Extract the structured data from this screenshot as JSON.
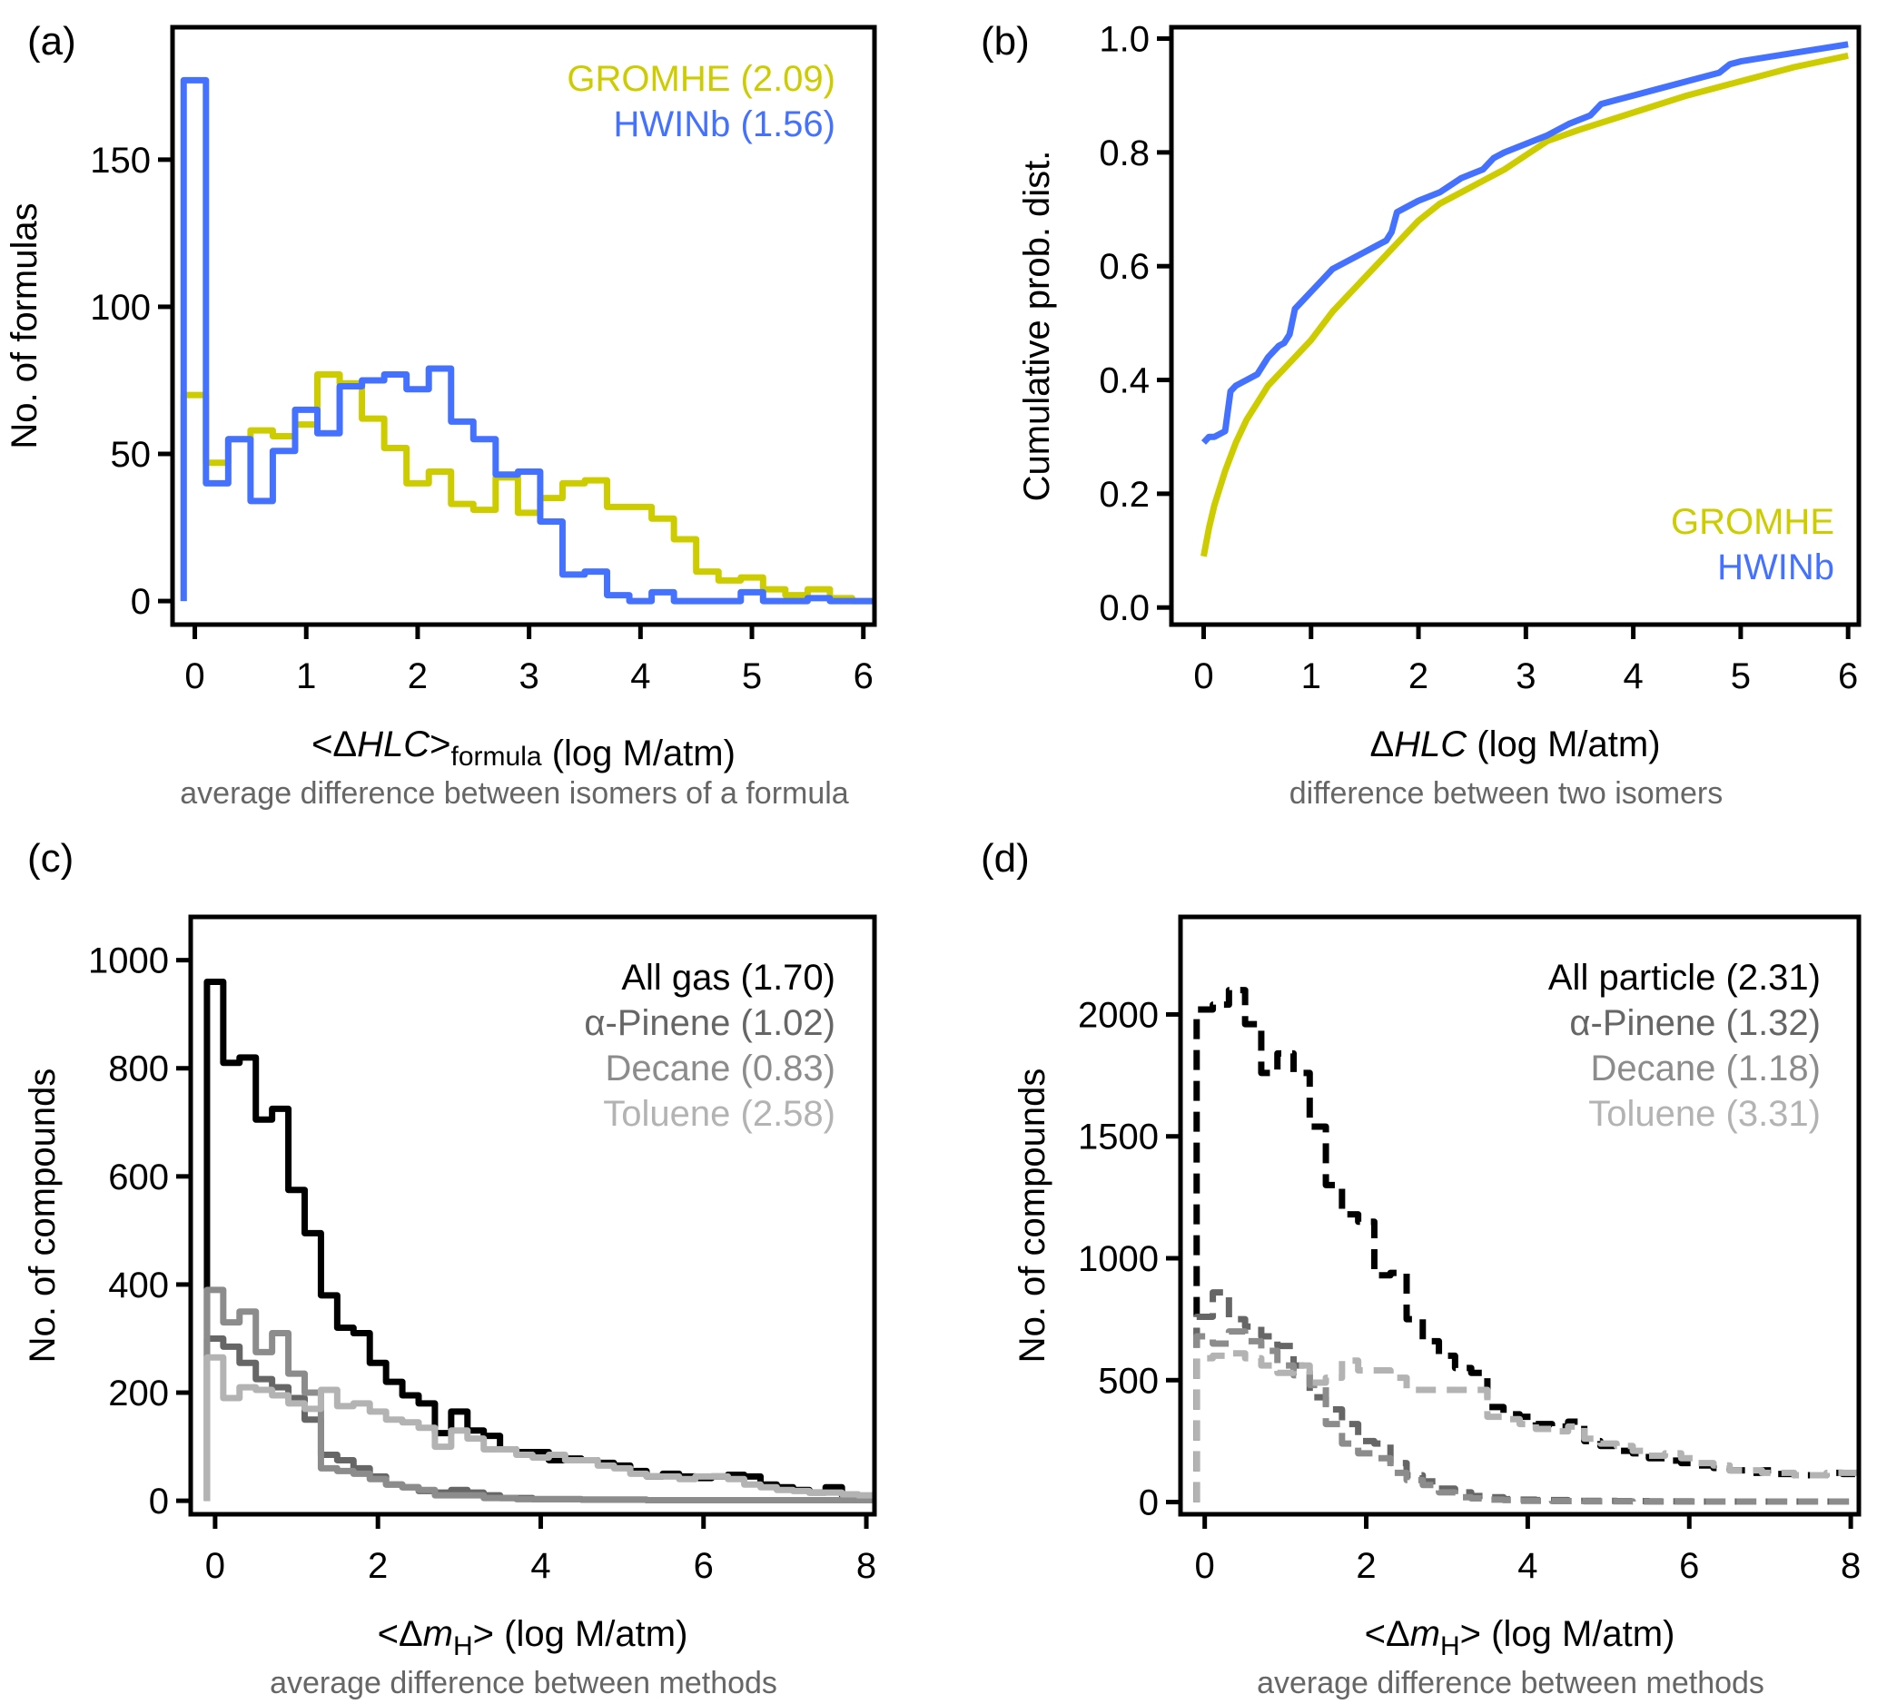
{
  "figure": {
    "panels": [
      "(a)",
      "(b)",
      "(c)",
      "(d)"
    ]
  },
  "chart_data": [
    {
      "id": "a",
      "type": "line",
      "style": "step-histogram",
      "panel_label": "(a)",
      "xlabel_prefix": "<Δ",
      "xlabel_italic": "HLC",
      "xlabel_mid": ">",
      "xlabel_sub": "formula",
      "xlabel_suffix": " (log M/atm)",
      "sublabel": "average difference between isomers of a formula",
      "ylabel": "No. of formulas",
      "xlim": [
        -0.2,
        6.1
      ],
      "ylim": [
        -8,
        195
      ],
      "xticks": [
        0,
        1,
        2,
        3,
        4,
        5,
        6
      ],
      "yticks": [
        0,
        50,
        100,
        150
      ],
      "bin_width": 0.2,
      "bin_start": -0.1,
      "series": [
        {
          "name": "GROMHE",
          "legend": "GROMHE (2.09)",
          "color": "#cccc00",
          "values": [
            70,
            47,
            55,
            58,
            56,
            60,
            77,
            74,
            62,
            52,
            40,
            44,
            33,
            31,
            42,
            30,
            35,
            40,
            41,
            32,
            32,
            28,
            21,
            10,
            7,
            8,
            4,
            2,
            4,
            1,
            0
          ]
        },
        {
          "name": "HWINb",
          "legend": "HWINb (1.56)",
          "color": "#4472ff",
          "values": [
            177,
            40,
            55,
            34,
            51,
            65,
            57,
            73,
            75,
            77,
            72,
            79,
            61,
            55,
            43,
            44,
            27,
            9,
            10,
            2,
            0,
            3,
            0,
            0,
            0,
            3,
            0,
            0,
            1,
            0,
            0
          ]
        }
      ]
    },
    {
      "id": "b",
      "type": "line",
      "panel_label": "(b)",
      "xlabel_prefix": "Δ",
      "xlabel_italic": "HLC",
      "xlabel_suffix": " (log M/atm)",
      "sublabel": "difference between two isomers",
      "ylabel": "Cumulative prob. dist.",
      "xlim": [
        -0.3,
        6.1
      ],
      "ylim": [
        -0.03,
        1.02
      ],
      "xticks": [
        0,
        1,
        2,
        3,
        4,
        5,
        6
      ],
      "yticks": [
        0.0,
        0.2,
        0.4,
        0.6,
        0.8,
        1.0
      ],
      "ytick_labels": [
        "0.0",
        "0.2",
        "0.4",
        "0.6",
        "0.8",
        "1.0"
      ],
      "series": [
        {
          "name": "GROMHE",
          "legend": "GROMHE",
          "color": "#cccc00",
          "x": [
            0,
            0.05,
            0.1,
            0.2,
            0.3,
            0.4,
            0.5,
            0.6,
            0.7,
            0.8,
            0.9,
            1.0,
            1.2,
            1.4,
            1.6,
            1.8,
            2.0,
            2.2,
            2.4,
            2.6,
            2.8,
            3.0,
            3.2,
            3.5,
            4.0,
            4.5,
            5.0,
            5.5,
            6.0
          ],
          "y": [
            0.09,
            0.14,
            0.18,
            0.24,
            0.29,
            0.33,
            0.36,
            0.39,
            0.41,
            0.43,
            0.45,
            0.47,
            0.52,
            0.56,
            0.6,
            0.64,
            0.68,
            0.71,
            0.73,
            0.75,
            0.77,
            0.795,
            0.82,
            0.84,
            0.87,
            0.9,
            0.925,
            0.95,
            0.97
          ]
        },
        {
          "name": "HWINb",
          "legend": "HWINb",
          "color": "#4472ff",
          "x": [
            0,
            0.05,
            0.1,
            0.2,
            0.25,
            0.3,
            0.4,
            0.5,
            0.55,
            0.6,
            0.7,
            0.75,
            0.8,
            0.85,
            0.9,
            1.0,
            1.1,
            1.2,
            1.3,
            1.4,
            1.5,
            1.6,
            1.7,
            1.75,
            1.8,
            1.9,
            2.0,
            2.2,
            2.4,
            2.6,
            2.7,
            2.8,
            3.0,
            3.2,
            3.4,
            3.6,
            3.65,
            3.7,
            4.0,
            4.2,
            4.5,
            4.8,
            4.9,
            5.0,
            5.5,
            6.0
          ],
          "y": [
            0.29,
            0.3,
            0.3,
            0.31,
            0.38,
            0.39,
            0.4,
            0.41,
            0.425,
            0.44,
            0.46,
            0.465,
            0.48,
            0.525,
            0.535,
            0.555,
            0.575,
            0.595,
            0.605,
            0.615,
            0.625,
            0.635,
            0.645,
            0.66,
            0.695,
            0.705,
            0.715,
            0.73,
            0.755,
            0.77,
            0.79,
            0.8,
            0.815,
            0.83,
            0.85,
            0.865,
            0.875,
            0.885,
            0.9,
            0.91,
            0.925,
            0.94,
            0.955,
            0.96,
            0.975,
            0.99
          ]
        }
      ],
      "legend_position": "bottom-right"
    },
    {
      "id": "c",
      "type": "line",
      "style": "step-histogram",
      "panel_label": "(c)",
      "xlabel_prefix": "<Δ",
      "xlabel_italic": "m",
      "xlabel_sub": "H",
      "xlabel_mid": ">",
      "xlabel_suffix": " (log M/atm)",
      "sublabel": "average difference between methods",
      "ylabel": "No. of compounds",
      "xlim": [
        -0.3,
        8.1
      ],
      "ylim": [
        -25,
        1080
      ],
      "xticks": [
        0,
        2,
        4,
        6,
        8
      ],
      "yticks": [
        0,
        200,
        400,
        600,
        800,
        1000
      ],
      "bin_width": 0.2,
      "bin_start": -0.1,
      "series": [
        {
          "name": "All gas",
          "legend": "All gas (1.70)",
          "color": "#000000",
          "dash": false,
          "values": [
            960,
            810,
            820,
            705,
            725,
            575,
            495,
            380,
            320,
            310,
            255,
            220,
            195,
            180,
            125,
            165,
            130,
            120,
            95,
            90,
            90,
            75,
            78,
            75,
            70,
            65,
            55,
            45,
            50,
            45,
            42,
            45,
            48,
            45,
            30,
            25,
            20,
            15,
            25,
            10,
            8
          ]
        },
        {
          "name": "α-Pinene",
          "legend": "α-Pinene (1.02)",
          "color": "#666666",
          "dash": false,
          "values": [
            300,
            285,
            255,
            225,
            210,
            190,
            150,
            85,
            75,
            60,
            45,
            30,
            25,
            18,
            15,
            20,
            15,
            10,
            5,
            5,
            3,
            3,
            3,
            2,
            2,
            2,
            2,
            1,
            1,
            1,
            1,
            1,
            1,
            1,
            1,
            1,
            1,
            1,
            1,
            1,
            1
          ]
        },
        {
          "name": "Decane",
          "legend": "Decane (0.83)",
          "color": "#8c8c8c",
          "dash": false,
          "values": [
            390,
            330,
            350,
            275,
            310,
            235,
            200,
            60,
            55,
            50,
            40,
            30,
            25,
            20,
            10,
            10,
            10,
            5,
            5,
            3,
            3,
            3,
            3,
            2,
            2,
            2,
            2,
            1,
            1,
            1,
            1,
            1,
            1,
            1,
            1,
            1,
            1,
            1,
            1,
            1,
            1
          ]
        },
        {
          "name": "Toluene",
          "legend": "Toluene (2.58)",
          "color": "#b3b3b3",
          "dash": false,
          "values": [
            265,
            190,
            210,
            205,
            195,
            180,
            170,
            205,
            175,
            180,
            165,
            150,
            145,
            135,
            100,
            130,
            115,
            95,
            95,
            85,
            80,
            85,
            75,
            75,
            65,
            60,
            50,
            45,
            45,
            40,
            45,
            45,
            40,
            30,
            25,
            20,
            18,
            15,
            15,
            12,
            10
          ]
        }
      ]
    },
    {
      "id": "d",
      "type": "line",
      "style": "step-histogram",
      "panel_label": "(d)",
      "xlabel_prefix": "<Δ",
      "xlabel_italic": "m",
      "xlabel_sub": "H",
      "xlabel_mid": ">",
      "xlabel_suffix": " (log M/atm)",
      "sublabel": "average difference between methods",
      "ylabel": "No. of compounds",
      "xlim": [
        -0.3,
        8.1
      ],
      "ylim": [
        -50,
        2400
      ],
      "xticks": [
        0,
        2,
        4,
        6,
        8
      ],
      "yticks": [
        0,
        500,
        1000,
        1500,
        2000
      ],
      "bin_width": 0.2,
      "bin_start": -0.1,
      "series": [
        {
          "name": "All particle",
          "legend": "All particle (2.31)",
          "color": "#000000",
          "dash": true,
          "values": [
            2020,
            2040,
            2100,
            1960,
            1760,
            1840,
            1760,
            1540,
            1300,
            1180,
            1150,
            930,
            940,
            750,
            660,
            600,
            550,
            530,
            390,
            360,
            350,
            320,
            310,
            330,
            250,
            230,
            210,
            200,
            180,
            170,
            160,
            150,
            140,
            130,
            120,
            130,
            115,
            110,
            110,
            120,
            115
          ]
        },
        {
          "name": "α-Pinene",
          "legend": "α-Pinene (1.32)",
          "color": "#666666",
          "dash": true,
          "values": [
            760,
            860,
            750,
            720,
            680,
            640,
            560,
            430,
            380,
            320,
            250,
            240,
            160,
            110,
            85,
            55,
            40,
            25,
            20,
            12,
            10,
            8,
            8,
            5,
            5,
            5,
            4,
            4,
            3,
            3,
            3,
            2,
            2,
            2,
            2,
            2,
            2,
            2,
            2,
            2,
            2
          ]
        },
        {
          "name": "Decane",
          "legend": "Decane (1.18)",
          "color": "#8c8c8c",
          "dash": true,
          "values": [
            680,
            650,
            700,
            660,
            620,
            560,
            520,
            480,
            320,
            240,
            200,
            180,
            120,
            90,
            70,
            40,
            20,
            15,
            10,
            8,
            5,
            5,
            4,
            4,
            3,
            3,
            3,
            2,
            2,
            2,
            2,
            2,
            2,
            2,
            2,
            2,
            2,
            2,
            2,
            2,
            2
          ]
        },
        {
          "name": "Toluene",
          "legend": "Toluene (3.31)",
          "color": "#b3b3b3",
          "dash": true,
          "values": [
            590,
            600,
            610,
            590,
            560,
            530,
            560,
            490,
            510,
            580,
            540,
            540,
            510,
            460,
            460,
            460,
            460,
            460,
            350,
            340,
            320,
            300,
            290,
            310,
            260,
            240,
            230,
            210,
            190,
            200,
            180,
            160,
            150,
            130,
            130,
            120,
            120,
            110,
            110,
            120,
            120
          ]
        }
      ]
    }
  ]
}
